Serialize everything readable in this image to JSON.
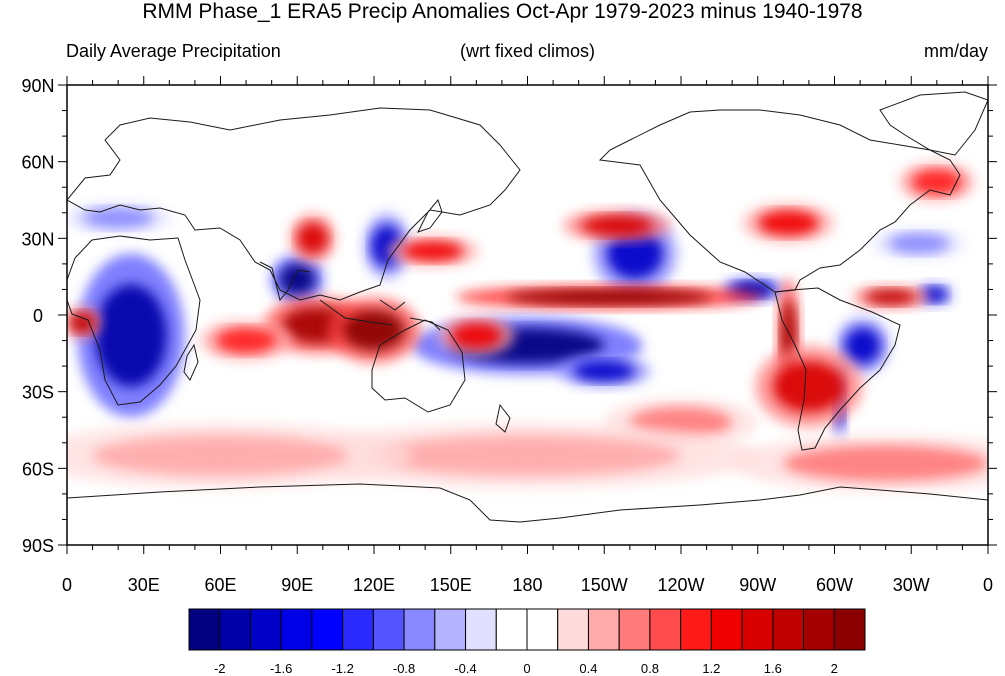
{
  "title": "RMM Phase_1 ERA5 Precip Anomalies Oct-Apr 1979-2023 minus 1940-1978",
  "subtitle_left": "Daily Average Precipitation",
  "subtitle_center": "(wrt fixed climos)",
  "subtitle_right": "mm/day",
  "lat_labels": [
    "90N",
    "60N",
    "30N",
    "0",
    "30S",
    "60S",
    "90S"
  ],
  "lon_labels": [
    "0",
    "30E",
    "60E",
    "90E",
    "120E",
    "150E",
    "180",
    "150W",
    "120W",
    "90W",
    "60W",
    "30W",
    "0"
  ],
  "colorbar": {
    "colors": [
      "#000080",
      "#0000a8",
      "#0000c8",
      "#0000e6",
      "#0000ff",
      "#2a2aff",
      "#5555ff",
      "#8888ff",
      "#b3b3ff",
      "#e1e1ff",
      "#ffffff",
      "#ffffff",
      "#ffdcdc",
      "#ffaaaa",
      "#ff7b7b",
      "#ff4b4b",
      "#ff1a1a",
      "#f00000",
      "#d80000",
      "#bf0000",
      "#a50000",
      "#8a0000"
    ],
    "tick_labels": [
      "-2",
      "-1.6",
      "-1.2",
      "-0.8",
      "-0.4",
      "0",
      "0.4",
      "0.8",
      "1.2",
      "1.6",
      "2"
    ]
  },
  "anomaly_regions": [
    {
      "lon": 25,
      "lat": -8,
      "rlon": 14,
      "rlat": 20,
      "value": -1.8
    },
    {
      "lon": 90,
      "lat": 14,
      "rlon": 7,
      "rlat": 6,
      "value": -2.2
    },
    {
      "lon": 125,
      "lat": 27,
      "rlon": 6,
      "rlat": 8,
      "value": -1.6
    },
    {
      "lon": 180,
      "lat": -12,
      "rlon": 30,
      "rlat": 7,
      "value": -2.2
    },
    {
      "lon": 210,
      "lat": -22,
      "rlon": 12,
      "rlat": 4,
      "value": -1.6
    },
    {
      "lon": 222,
      "lat": 24,
      "rlon": 11,
      "rlat": 10,
      "value": -1.7
    },
    {
      "lon": 268,
      "lat": 10,
      "rlon": 8,
      "rlat": 3,
      "value": -1.9
    },
    {
      "lon": 311,
      "lat": -12,
      "rlon": 7,
      "rlat": 7,
      "value": -1.6
    },
    {
      "lon": 339,
      "lat": 8,
      "rlon": 5,
      "rlat": 3,
      "value": -1.6
    },
    {
      "lon": 302,
      "lat": -34,
      "rlon": 2,
      "rlat": 10,
      "value": -1.7
    },
    {
      "lon": 333,
      "lat": 28,
      "rlon": 12,
      "rlat": 4,
      "value": -0.7
    },
    {
      "lon": 20,
      "lat": 38,
      "rlon": 14,
      "rlat": 4,
      "value": -0.6
    },
    {
      "lon": 212,
      "lat": 7,
      "rlon": 40,
      "rlat": 3,
      "value": 2.3
    },
    {
      "lon": 98,
      "lat": -4,
      "rlon": 14,
      "rlat": 7,
      "value": 1.9
    },
    {
      "lon": 120,
      "lat": -6,
      "rlon": 12,
      "rlat": 8,
      "value": 2.0
    },
    {
      "lon": 143,
      "lat": 25,
      "rlon": 12,
      "rlat": 4,
      "value": 1.3
    },
    {
      "lon": 215,
      "lat": 35,
      "rlon": 14,
      "rlat": 4,
      "value": 1.4
    },
    {
      "lon": 282,
      "lat": -8,
      "rlon": 3,
      "rlat": 14,
      "value": 1.9
    },
    {
      "lon": 290,
      "lat": -28,
      "rlon": 14,
      "rlat": 10,
      "value": 1.5
    },
    {
      "lon": 322,
      "lat": 7,
      "rlon": 10,
      "rlat": 3,
      "value": 1.6
    },
    {
      "lon": 282,
      "lat": 36,
      "rlon": 12,
      "rlat": 5,
      "value": 1.3
    },
    {
      "lon": 340,
      "lat": 52,
      "rlon": 10,
      "rlat": 5,
      "value": 1.0
    },
    {
      "lon": 6,
      "lat": -3,
      "rlon": 5,
      "rlat": 4,
      "value": 1.6
    },
    {
      "lon": 70,
      "lat": -10,
      "rlon": 12,
      "rlat": 5,
      "value": 1.1
    },
    {
      "lon": 96,
      "lat": 30,
      "rlon": 6,
      "rlat": 6,
      "value": 1.4
    },
    {
      "lon": 160,
      "lat": -8,
      "rlon": 10,
      "rlat": 5,
      "value": 1.2
    },
    {
      "lon": 240,
      "lat": -42,
      "rlon": 20,
      "rlat": 6,
      "value": 0.8
    },
    {
      "lon": 180,
      "lat": -55,
      "rlon": 60,
      "rlat": 8,
      "value": 0.5
    },
    {
      "lon": 60,
      "lat": -55,
      "rlon": 50,
      "rlat": 8,
      "value": 0.5
    },
    {
      "lon": 320,
      "lat": -58,
      "rlon": 40,
      "rlat": 7,
      "value": 0.6
    }
  ]
}
